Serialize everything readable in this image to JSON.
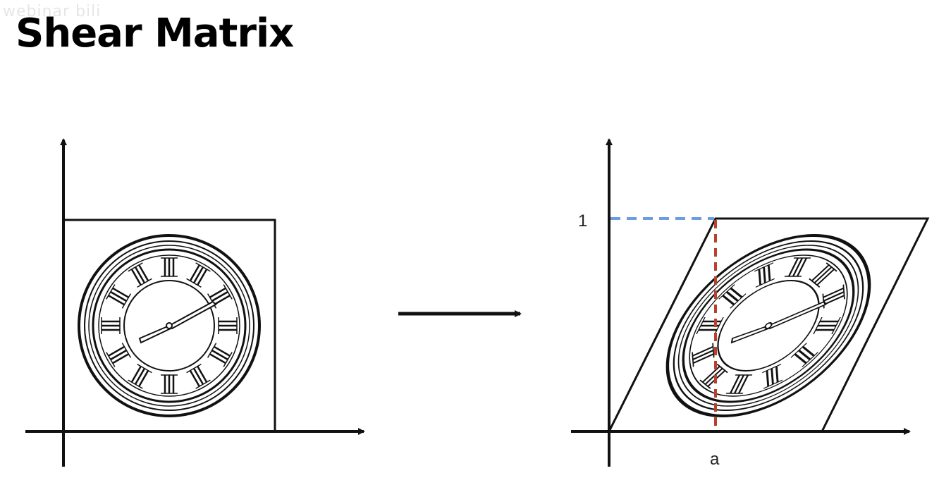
{
  "slide": {
    "title": "Shear Matrix",
    "watermark": "webinar bili"
  },
  "diagram": {
    "left": {
      "description_label": ""
    },
    "right": {
      "y_tick_label": "1",
      "x_tick_label": "a"
    },
    "colors": {
      "ink": "#111111",
      "blue_dash": "#6f9be0",
      "red_dash": "#b9402f"
    }
  }
}
